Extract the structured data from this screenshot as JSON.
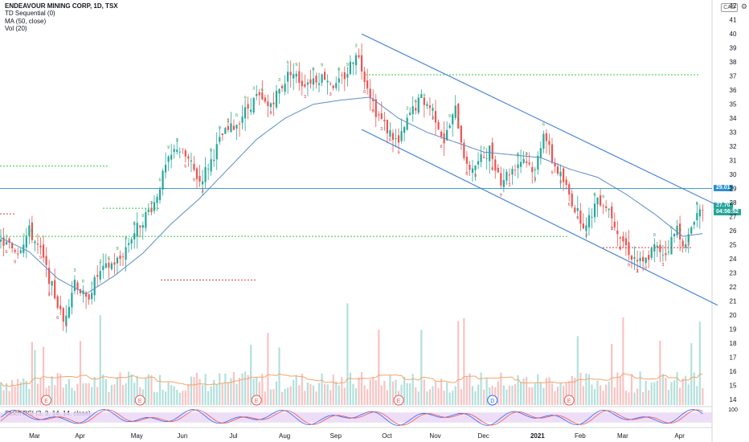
{
  "header": {
    "symbol_line": "ENDEAVOUR MINING CORP, 1D, TSX",
    "indicators": [
      "TD Sequential (0)",
      "MA (50, close)",
      "Vol (20)"
    ],
    "currency": "CAD",
    "gear_icon": "gear-icon"
  },
  "price_tags": {
    "level": "29.01",
    "last": "27.70",
    "countdown": "04:56:52"
  },
  "stoch_legend": "Stoch RSI (3, 3, 14, 14, close)",
  "colors": {
    "up": "#26a69a",
    "down": "#ef5350",
    "ma": "#5a8ec8",
    "channel": "#3b7dd8",
    "support_green": "#2ecc40",
    "resist_red": "#e53935",
    "level_line": "#2a8fd0",
    "vol_ma": "#f4a46a",
    "stoch_k": "#2962ff",
    "stoch_d": "#ef5350",
    "stoch_band": "#e9d5f5"
  },
  "chart_data": {
    "type": "candlestick",
    "title": "ENDEAVOUR MINING CORP, 1D, TSX",
    "currency": "CAD",
    "x_labels": [
      "Mar",
      "Apr",
      "May",
      "Jun",
      "Jul",
      "Aug",
      "Sep",
      "Oct",
      "Nov",
      "Dec",
      "2021",
      "Feb",
      "Mar",
      "Apr"
    ],
    "y_ticks": [
      14,
      15,
      16,
      17,
      18,
      19,
      20,
      21,
      22,
      23,
      24,
      25,
      26,
      27,
      28,
      29,
      30,
      31,
      32,
      33,
      34,
      35,
      36,
      37,
      38,
      39,
      40,
      41,
      42
    ],
    "ylim": [
      13.6,
      42.3
    ],
    "close_path": [
      [
        0,
        25.2
      ],
      [
        6,
        24.6
      ],
      [
        10,
        26.0
      ],
      [
        14,
        24.5
      ],
      [
        18,
        22.0
      ],
      [
        22,
        19.5
      ],
      [
        26,
        22.5
      ],
      [
        30,
        21.0
      ],
      [
        34,
        22.8
      ],
      [
        38,
        23.5
      ],
      [
        42,
        24.0
      ],
      [
        46,
        25.6
      ],
      [
        50,
        26.8
      ],
      [
        54,
        28.0
      ],
      [
        58,
        30.5
      ],
      [
        62,
        32.0
      ],
      [
        66,
        31.0
      ],
      [
        70,
        29.5
      ],
      [
        74,
        31.0
      ],
      [
        78,
        32.8
      ],
      [
        82,
        33.4
      ],
      [
        86,
        34.5
      ],
      [
        90,
        35.5
      ],
      [
        94,
        34.8
      ],
      [
        98,
        36.0
      ],
      [
        102,
        37.4
      ],
      [
        106,
        36.5
      ],
      [
        110,
        36.8
      ],
      [
        114,
        37.0
      ],
      [
        118,
        36.2
      ],
      [
        122,
        37.3
      ],
      [
        125,
        38.8
      ],
      [
        128,
        37.0
      ],
      [
        132,
        34.5
      ],
      [
        136,
        33.2
      ],
      [
        140,
        32.2
      ],
      [
        144,
        34.3
      ],
      [
        148,
        35.4
      ],
      [
        152,
        34.6
      ],
      [
        156,
        32.4
      ],
      [
        160,
        34.6
      ],
      [
        164,
        30.4
      ],
      [
        168,
        30.8
      ],
      [
        172,
        31.8
      ],
      [
        176,
        29.6
      ],
      [
        180,
        30.4
      ],
      [
        184,
        31.2
      ],
      [
        188,
        30.2
      ],
      [
        191,
        33.2
      ],
      [
        194,
        31.0
      ],
      [
        198,
        29.5
      ],
      [
        202,
        27.6
      ],
      [
        206,
        26.2
      ],
      [
        210,
        28.4
      ],
      [
        214,
        27.6
      ],
      [
        218,
        25.6
      ],
      [
        222,
        24.2
      ],
      [
        226,
        23.6
      ],
      [
        230,
        24.8
      ],
      [
        234,
        24.4
      ],
      [
        238,
        26.2
      ],
      [
        241,
        24.8
      ],
      [
        244,
        27.0
      ],
      [
        247,
        27.7
      ]
    ],
    "ma50_path": [
      [
        0,
        25.5
      ],
      [
        10,
        24.5
      ],
      [
        20,
        22.6
      ],
      [
        30,
        21.5
      ],
      [
        40,
        22.8
      ],
      [
        50,
        24.4
      ],
      [
        60,
        26.5
      ],
      [
        70,
        28.3
      ],
      [
        80,
        30.4
      ],
      [
        90,
        32.5
      ],
      [
        100,
        34.0
      ],
      [
        110,
        35.0
      ],
      [
        120,
        35.3
      ],
      [
        130,
        35.5
      ],
      [
        140,
        34.0
      ],
      [
        150,
        33.0
      ],
      [
        160,
        32.3
      ],
      [
        170,
        31.6
      ],
      [
        180,
        31.4
      ],
      [
        190,
        31.2
      ],
      [
        200,
        30.4
      ],
      [
        210,
        29.8
      ],
      [
        220,
        28.6
      ],
      [
        230,
        27.2
      ],
      [
        240,
        25.6
      ],
      [
        247,
        25.8
      ]
    ],
    "trend_channel": {
      "upper": [
        [
          127,
          40.0
        ],
        [
          250,
          27.8
        ]
      ],
      "lower": [
        [
          127,
          33.2
        ],
        [
          250,
          20.7
        ]
      ]
    },
    "horizontal_levels": [
      {
        "value": 29.01,
        "label": "29.01",
        "color": "level_line"
      },
      {
        "value": 37.1,
        "color": "support_green"
      },
      {
        "value": 30.6,
        "color": "support_green"
      },
      {
        "value": 27.6,
        "color": "support_green"
      },
      {
        "value": 25.6,
        "color": "support_green"
      },
      {
        "value": 24.8,
        "color": "resist_red"
      },
      {
        "value": 27.2,
        "color": "resist_red"
      },
      {
        "value": 22.5,
        "color": "resist_red"
      }
    ],
    "last_price": 27.7,
    "countdown": "04:56:52",
    "earnings_markers": [
      "E",
      "E",
      "E",
      "E",
      "D",
      "E"
    ],
    "volume_ma_period": 20,
    "stoch_rsi": {
      "k": 3,
      "d": 3,
      "rsi_length": 14,
      "stoch_length": 14,
      "source": "close",
      "band": [
        20,
        80
      ],
      "y_tick": 100
    }
  }
}
